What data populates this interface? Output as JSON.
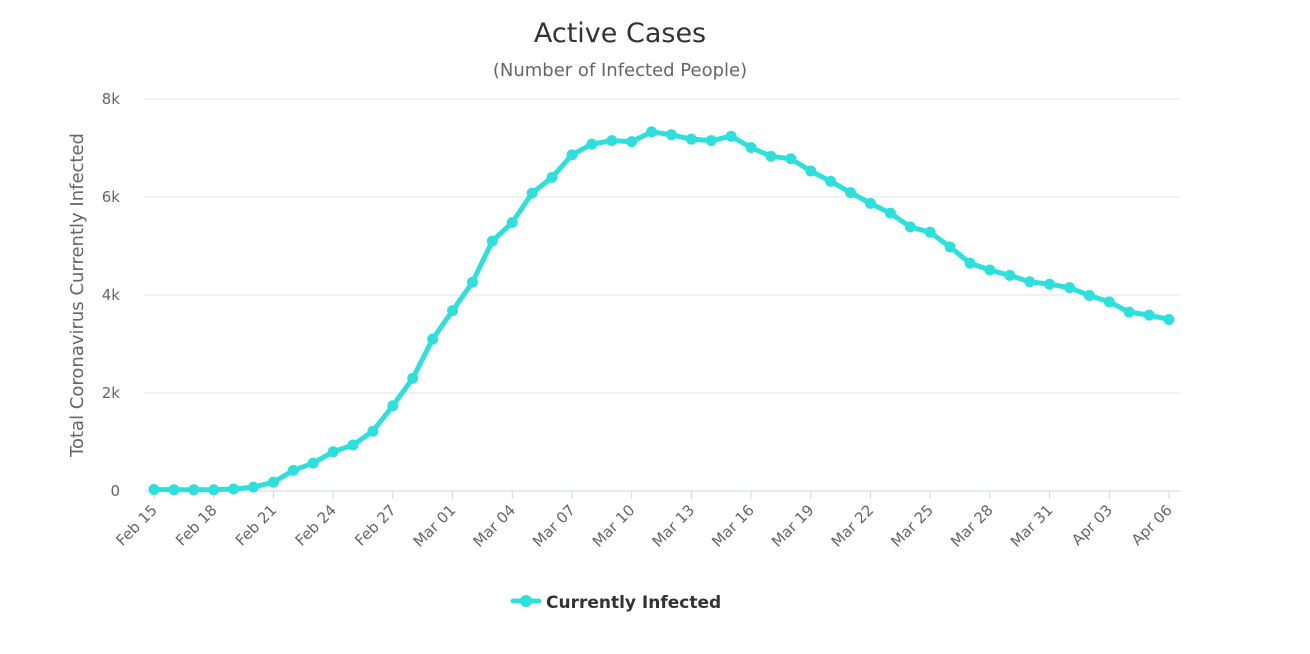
{
  "chart_data": {
    "type": "line",
    "title": "Active Cases",
    "subtitle": "(Number of Infected People)",
    "ylabel": "Total Coronavirus Currently Infected",
    "xlabel": "",
    "ylim": [
      0,
      8000
    ],
    "yticks": [
      {
        "value": 0,
        "label": "0"
      },
      {
        "value": 2000,
        "label": "2k"
      },
      {
        "value": 4000,
        "label": "4k"
      },
      {
        "value": 6000,
        "label": "6k"
      },
      {
        "value": 8000,
        "label": "8k"
      }
    ],
    "categories": [
      "Feb 15",
      "Feb 16",
      "Feb 17",
      "Feb 18",
      "Feb 19",
      "Feb 20",
      "Feb 21",
      "Feb 22",
      "Feb 23",
      "Feb 24",
      "Feb 25",
      "Feb 26",
      "Feb 27",
      "Feb 28",
      "Feb 29",
      "Mar 01",
      "Mar 02",
      "Mar 03",
      "Mar 04",
      "Mar 05",
      "Mar 06",
      "Mar 07",
      "Mar 08",
      "Mar 09",
      "Mar 10",
      "Mar 11",
      "Mar 12",
      "Mar 13",
      "Mar 14",
      "Mar 15",
      "Mar 16",
      "Mar 17",
      "Mar 18",
      "Mar 19",
      "Mar 20",
      "Mar 21",
      "Mar 22",
      "Mar 23",
      "Mar 24",
      "Mar 25",
      "Mar 26",
      "Mar 27",
      "Mar 28",
      "Mar 29",
      "Mar 30",
      "Mar 31",
      "Apr 01",
      "Apr 02",
      "Apr 03",
      "Apr 04",
      "Apr 05",
      "Apr 06"
    ],
    "xtick_labels": [
      "Feb 15",
      "Feb 18",
      "Feb 21",
      "Feb 24",
      "Feb 27",
      "Mar 01",
      "Mar 04",
      "Mar 07",
      "Mar 10",
      "Mar 13",
      "Mar 16",
      "Mar 19",
      "Mar 22",
      "Mar 25",
      "Mar 28",
      "Mar 31",
      "Apr 03",
      "Apr 06"
    ],
    "series": [
      {
        "name": "Currently Infected",
        "color": "#2ee0dc",
        "values": [
          30,
          25,
          25,
          25,
          40,
          80,
          180,
          420,
          570,
          800,
          940,
          1220,
          1740,
          2300,
          3100,
          3680,
          4260,
          5100,
          5480,
          6080,
          6400,
          6860,
          7080,
          7150,
          7130,
          7330,
          7270,
          7180,
          7150,
          7240,
          7010,
          6830,
          6780,
          6530,
          6320,
          6090,
          5870,
          5670,
          5390,
          5280,
          4980,
          4650,
          4510,
          4400,
          4270,
          4220,
          4150,
          3990,
          3860,
          3650,
          3590,
          3500
        ]
      }
    ]
  }
}
